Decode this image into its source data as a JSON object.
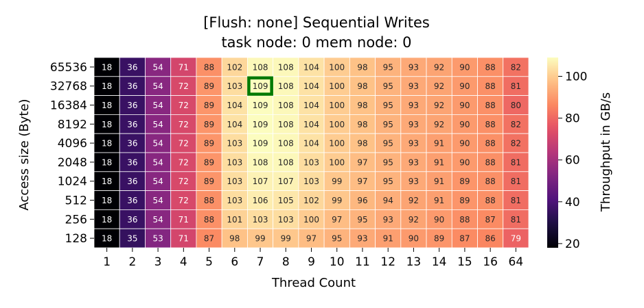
{
  "chart_data": {
    "type": "heatmap",
    "title": [
      "[Flush: none] Sequential Writes",
      "task node: 0 mem node: 0"
    ],
    "xlabel": "Thread Count",
    "ylabel": "Access size (Byte)",
    "colorbar_label": "Throughput in GB/s",
    "colormap": "magma",
    "vmin": 18,
    "vmax": 109,
    "colorbar_ticks": [
      "20",
      "40",
      "60",
      "80",
      "100"
    ],
    "x": [
      "1",
      "2",
      "3",
      "4",
      "5",
      "6",
      "7",
      "8",
      "9",
      "10",
      "11",
      "12",
      "13",
      "14",
      "15",
      "16",
      "64"
    ],
    "y": [
      "65536",
      "32768",
      "16384",
      "8192",
      "4096",
      "2048",
      "1024",
      "512",
      "256",
      "128"
    ],
    "values": [
      [
        18,
        36,
        54,
        71,
        88,
        102,
        108,
        108,
        104,
        100,
        98,
        95,
        93,
        92,
        90,
        88,
        82
      ],
      [
        18,
        36,
        54,
        72,
        89,
        103,
        109,
        108,
        104,
        100,
        98,
        95,
        93,
        92,
        90,
        88,
        81
      ],
      [
        18,
        36,
        54,
        72,
        89,
        104,
        109,
        108,
        104,
        100,
        98,
        95,
        93,
        92,
        90,
        88,
        80
      ],
      [
        18,
        36,
        54,
        72,
        89,
        104,
        109,
        108,
        104,
        100,
        98,
        95,
        93,
        92,
        90,
        88,
        82
      ],
      [
        18,
        36,
        54,
        72,
        89,
        103,
        109,
        108,
        104,
        100,
        98,
        95,
        93,
        91,
        90,
        88,
        82
      ],
      [
        18,
        36,
        54,
        72,
        89,
        103,
        108,
        108,
        103,
        100,
        97,
        95,
        93,
        91,
        90,
        88,
        81
      ],
      [
        18,
        36,
        54,
        72,
        89,
        103,
        107,
        107,
        103,
        99,
        97,
        95,
        93,
        91,
        89,
        88,
        81
      ],
      [
        18,
        36,
        54,
        72,
        88,
        103,
        106,
        105,
        102,
        99,
        96,
        94,
        92,
        91,
        89,
        88,
        81
      ],
      [
        18,
        36,
        54,
        71,
        88,
        101,
        103,
        103,
        100,
        97,
        95,
        93,
        92,
        90,
        88,
        87,
        81
      ],
      [
        18,
        35,
        53,
        71,
        87,
        98,
        99,
        99,
        97,
        95,
        93,
        91,
        90,
        89,
        87,
        86,
        79
      ]
    ],
    "highlight": {
      "row": "32768",
      "col": "7",
      "color": "#007a00"
    }
  }
}
